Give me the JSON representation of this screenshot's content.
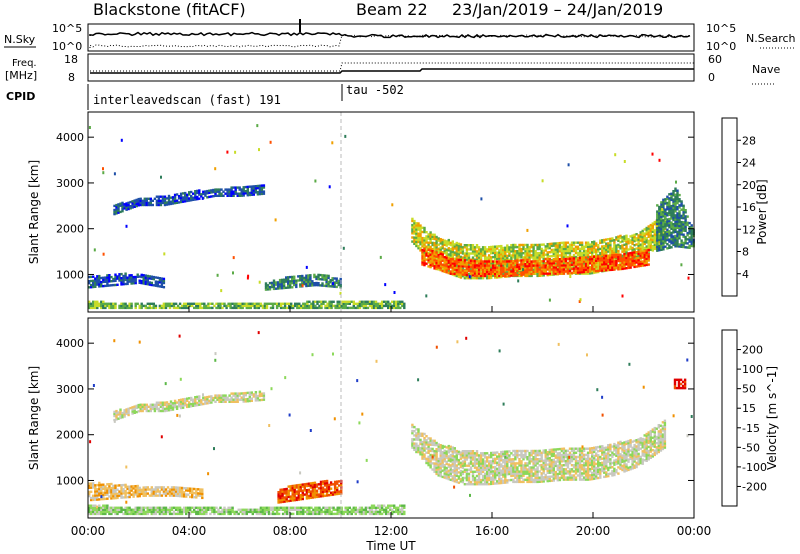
{
  "header": {
    "station": "Blackstone (fitACF)",
    "beam": "Beam 22",
    "dates": "23/Jan/2019 – 24/Jan/2019"
  },
  "sky_panel": {
    "label": "N.Sky",
    "ticks_left": [
      "10^5",
      "10^0"
    ],
    "ticks_right": [
      "10^5",
      "10^0"
    ],
    "right_label": "N.Search"
  },
  "freq_panel": {
    "label_line1": "Freq.",
    "label_line2": "[MHz]",
    "ticks_left": [
      "18",
      "8"
    ],
    "ticks_right": [
      "60",
      "0"
    ],
    "right_label": "Nave"
  },
  "cpid_panel": {
    "label": "CPID",
    "programs": [
      "interleavedscan (fast) 191",
      "tau -502"
    ]
  },
  "chart_data": [
    {
      "type": "heatmap",
      "quantity": "Power",
      "colorbar_label": "Power [dB]",
      "colorbar_ticks": [
        "28",
        "24",
        "20",
        "16",
        "12",
        "8",
        "4"
      ],
      "colors": [
        "#0000ff",
        "#1e4fa8",
        "#2e7d5a",
        "#5aaa46",
        "#c8dc28",
        "#f0a000",
        "#ff5000",
        "#ff0000"
      ],
      "ylabel": "Slant Range [km]",
      "yticks": [
        "4000",
        "3000",
        "2000",
        "1000"
      ],
      "ylim": [
        180,
        4550
      ],
      "xlim_hours": [
        0,
        24
      ],
      "regions": [
        {
          "t0": 1.0,
          "t1": 7.0,
          "r_lo": [
            2300,
            2500,
            2500,
            2600,
            2700,
            2700,
            2750
          ],
          "r_hi": [
            2500,
            2650,
            2700,
            2800,
            2850,
            2900,
            2950
          ],
          "level": 1
        },
        {
          "t0": 0.0,
          "t1": 3.0,
          "r_lo": [
            700,
            750,
            800,
            700
          ],
          "r_hi": [
            950,
            1000,
            1000,
            900
          ],
          "level": 1
        },
        {
          "t0": 7.0,
          "t1": 10.0,
          "r_lo": [
            650,
            700,
            750,
            700
          ],
          "r_hi": [
            800,
            950,
            1000,
            900
          ],
          "level": 2
        },
        {
          "t0": 0.0,
          "t1": 12.5,
          "r_lo": [
            250,
            250,
            250,
            250,
            250,
            250,
            250
          ],
          "r_hi": [
            400,
            350,
            380,
            350,
            380,
            420,
            400
          ],
          "level": 3
        },
        {
          "t0": 12.8,
          "t1": 22.8,
          "r_lo": [
            1700,
            1100,
            900,
            900,
            950,
            950,
            1000,
            1000,
            1100,
            1300,
            1700
          ],
          "r_hi": [
            2200,
            1800,
            1650,
            1600,
            1650,
            1650,
            1700,
            1700,
            1800,
            1900,
            2300
          ],
          "level": 4
        },
        {
          "t0": 13.2,
          "t1": 22.2,
          "r_lo": [
            1200,
            1000,
            950,
            950,
            1000,
            1000,
            1050,
            1100,
            1200
          ],
          "r_hi": [
            1600,
            1350,
            1300,
            1300,
            1300,
            1350,
            1400,
            1450,
            1550
          ],
          "level": 6
        },
        {
          "t0": 22.5,
          "t1": 24.0,
          "r_lo": [
            1500,
            1600,
            1550
          ],
          "r_hi": [
            2500,
            2900,
            1900
          ],
          "level": 2
        }
      ]
    },
    {
      "type": "heatmap",
      "quantity": "Velocity",
      "colorbar_label": "Velocity [m s^-1]",
      "colorbar_ticks": [
        "200",
        "100",
        "50",
        "15",
        "-15",
        "-50",
        "-100",
        "-200"
      ],
      "colors": [
        "#1e3cc8",
        "#2e7d5a",
        "#5cb848",
        "#8cd85a",
        "#c8c8c0",
        "#f0c060",
        "#f09000",
        "#f05000",
        "#e00000"
      ],
      "ylabel": "Slant Range [km]",
      "yticks": [
        "4000",
        "3000",
        "2000",
        "1000"
      ],
      "ylim": [
        180,
        4550
      ],
      "xlabel": "Time UT",
      "xticks": [
        "00:00",
        "04:00",
        "08:00",
        "12:00",
        "16:00",
        "20:00",
        "00:00"
      ],
      "xlim_hours": [
        0,
        24
      ],
      "regions": [
        {
          "t0": 1.0,
          "t1": 7.0,
          "r_lo": [
            2300,
            2500,
            2500,
            2600,
            2700,
            2700,
            2750
          ],
          "r_hi": [
            2500,
            2650,
            2700,
            2800,
            2850,
            2900,
            2950
          ],
          "level": 4
        },
        {
          "t0": 0.0,
          "t1": 4.5,
          "r_lo": [
            550,
            600,
            650,
            650,
            600
          ],
          "r_hi": [
            950,
            900,
            850,
            850,
            800
          ],
          "level": 5
        },
        {
          "t0": 7.5,
          "t1": 10.0,
          "r_lo": [
            500,
            600,
            700
          ],
          "r_hi": [
            800,
            950,
            1000
          ],
          "level": 7
        },
        {
          "t0": 0.0,
          "t1": 12.5,
          "r_lo": [
            250,
            250,
            250,
            250,
            250,
            250,
            250
          ],
          "r_hi": [
            450,
            400,
            400,
            380,
            400,
            420,
            450
          ],
          "level": 3
        },
        {
          "t0": 12.8,
          "t1": 22.8,
          "r_lo": [
            1700,
            1100,
            900,
            900,
            950,
            950,
            1000,
            1000,
            1100,
            1300,
            1700
          ],
          "r_hi": [
            2200,
            1800,
            1650,
            1600,
            1650,
            1650,
            1700,
            1700,
            1800,
            1900,
            2300
          ],
          "level": 4
        },
        {
          "t0": 23.2,
          "t1": 23.6,
          "r_lo": [
            3000,
            3000
          ],
          "r_hi": [
            3200,
            3200
          ],
          "level": 8
        }
      ]
    }
  ]
}
